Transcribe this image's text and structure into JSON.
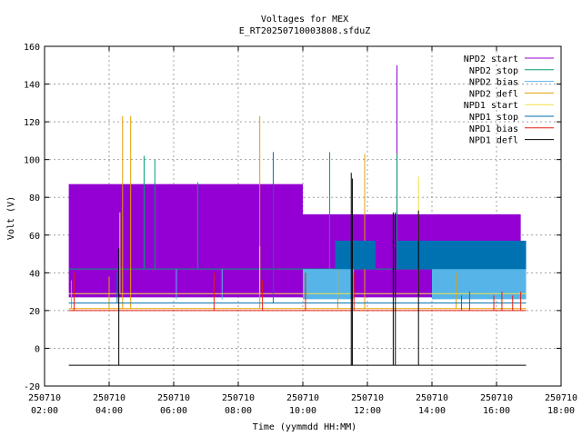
{
  "chart_data": {
    "type": "line",
    "title": "Voltages for MEX",
    "subtitle": "E_RT20250710003808.sfduZ",
    "xlabel": "Time (yymmdd HH:MM)",
    "ylabel": "Volt (V)",
    "grid": true,
    "legend_position": "top-right",
    "xlim": [
      "2025-07-10 02:00",
      "2025-07-10 18:00"
    ],
    "ylim": [
      -20,
      160
    ],
    "x_ticks": [
      {
        "date": "250710",
        "time": "02:00"
      },
      {
        "date": "250710",
        "time": "04:00"
      },
      {
        "date": "250710",
        "time": "06:00"
      },
      {
        "date": "250710",
        "time": "08:00"
      },
      {
        "date": "250710",
        "time": "10:00"
      },
      {
        "date": "250710",
        "time": "12:00"
      },
      {
        "date": "250710",
        "time": "14:00"
      },
      {
        "date": "250710",
        "time": "16:00"
      },
      {
        "date": "250710",
        "time": "18:00"
      }
    ],
    "y_ticks": [
      "-20",
      "0",
      "20",
      "40",
      "60",
      "80",
      "100",
      "120",
      "140",
      "160"
    ],
    "series": [
      {
        "name": "NPD2 start",
        "color": "#9400d3",
        "bands": [
          {
            "start": "02:45",
            "end": "10:00",
            "low": 27,
            "high": 87
          },
          {
            "start": "10:00",
            "end": "16:45",
            "low": 27,
            "high": 71
          }
        ],
        "spikes": [
          [
            "12:55",
            150
          ]
        ]
      },
      {
        "name": "NPD2 stop",
        "color": "#009e73",
        "bands": [],
        "baseline": [
          {
            "start": "02:45",
            "end": "16:55",
            "value": 42
          }
        ],
        "spikes": [
          [
            "05:05",
            102
          ],
          [
            "05:25",
            100
          ],
          [
            "06:45",
            88
          ],
          [
            "10:50",
            104
          ],
          [
            "11:25",
            57
          ],
          [
            "12:55",
            103
          ]
        ]
      },
      {
        "name": "NPD2 bias",
        "color": "#56b4e9",
        "bands": [
          {
            "start": "10:00",
            "end": "11:35",
            "low": 26,
            "high": 42
          },
          {
            "start": "14:00",
            "end": "16:55",
            "low": 26,
            "high": 42
          }
        ],
        "spikes": [
          [
            "06:05",
            42
          ],
          [
            "07:30",
            42
          ]
        ]
      },
      {
        "name": "NPD2 defl",
        "color": "#e69f00",
        "baseline": [
          {
            "start": "02:45",
            "end": "16:55",
            "value": 21
          }
        ],
        "spikes": [
          [
            "02:50",
            36
          ],
          [
            "04:00",
            38
          ],
          [
            "04:25",
            123
          ],
          [
            "04:40",
            123
          ],
          [
            "08:40",
            123
          ],
          [
            "11:05",
            55
          ],
          [
            "11:55",
            103
          ],
          [
            "14:45",
            40
          ]
        ]
      },
      {
        "name": "NPD1 start",
        "color": "#f0e442",
        "baseline": [
          {
            "start": "02:45",
            "end": "16:55",
            "value": 29
          }
        ],
        "spikes": [
          [
            "04:20",
            72
          ],
          [
            "08:40",
            54
          ],
          [
            "13:35",
            91
          ]
        ]
      },
      {
        "name": "NPD1 stop",
        "color": "#0072b2",
        "bands": [
          {
            "start": "11:00",
            "end": "12:15",
            "low": 42,
            "high": 57
          },
          {
            "start": "12:55",
            "end": "16:55",
            "low": 42,
            "high": 57
          }
        ],
        "baseline": [
          {
            "start": "02:45",
            "end": "16:55",
            "value": 24
          }
        ],
        "spikes": [
          [
            "04:15",
            40
          ],
          [
            "09:05",
            104
          ]
        ]
      },
      {
        "name": "NPD1 bias",
        "color": "#e51e10",
        "baseline": [
          {
            "start": "02:45",
            "end": "16:55",
            "value": 20
          }
        ],
        "spikes": [
          [
            "02:55",
            40
          ],
          [
            "07:15",
            40
          ],
          [
            "08:45",
            36
          ],
          [
            "10:05",
            40
          ],
          [
            "11:35",
            40
          ],
          [
            "14:55",
            28
          ],
          [
            "15:10",
            30
          ],
          [
            "15:55",
            28
          ],
          [
            "16:10",
            30
          ],
          [
            "16:30",
            28
          ],
          [
            "16:45",
            30
          ]
        ]
      },
      {
        "name": "NPD1 defl",
        "color": "#000000",
        "baseline": [
          {
            "start": "02:45",
            "end": "16:55",
            "value": -9
          }
        ],
        "spikes": [
          [
            "04:18",
            53
          ],
          [
            "11:30",
            93
          ],
          [
            "11:32",
            90
          ],
          [
            "12:48",
            72
          ],
          [
            "12:52",
            72
          ],
          [
            "13:35",
            73
          ]
        ]
      }
    ]
  }
}
